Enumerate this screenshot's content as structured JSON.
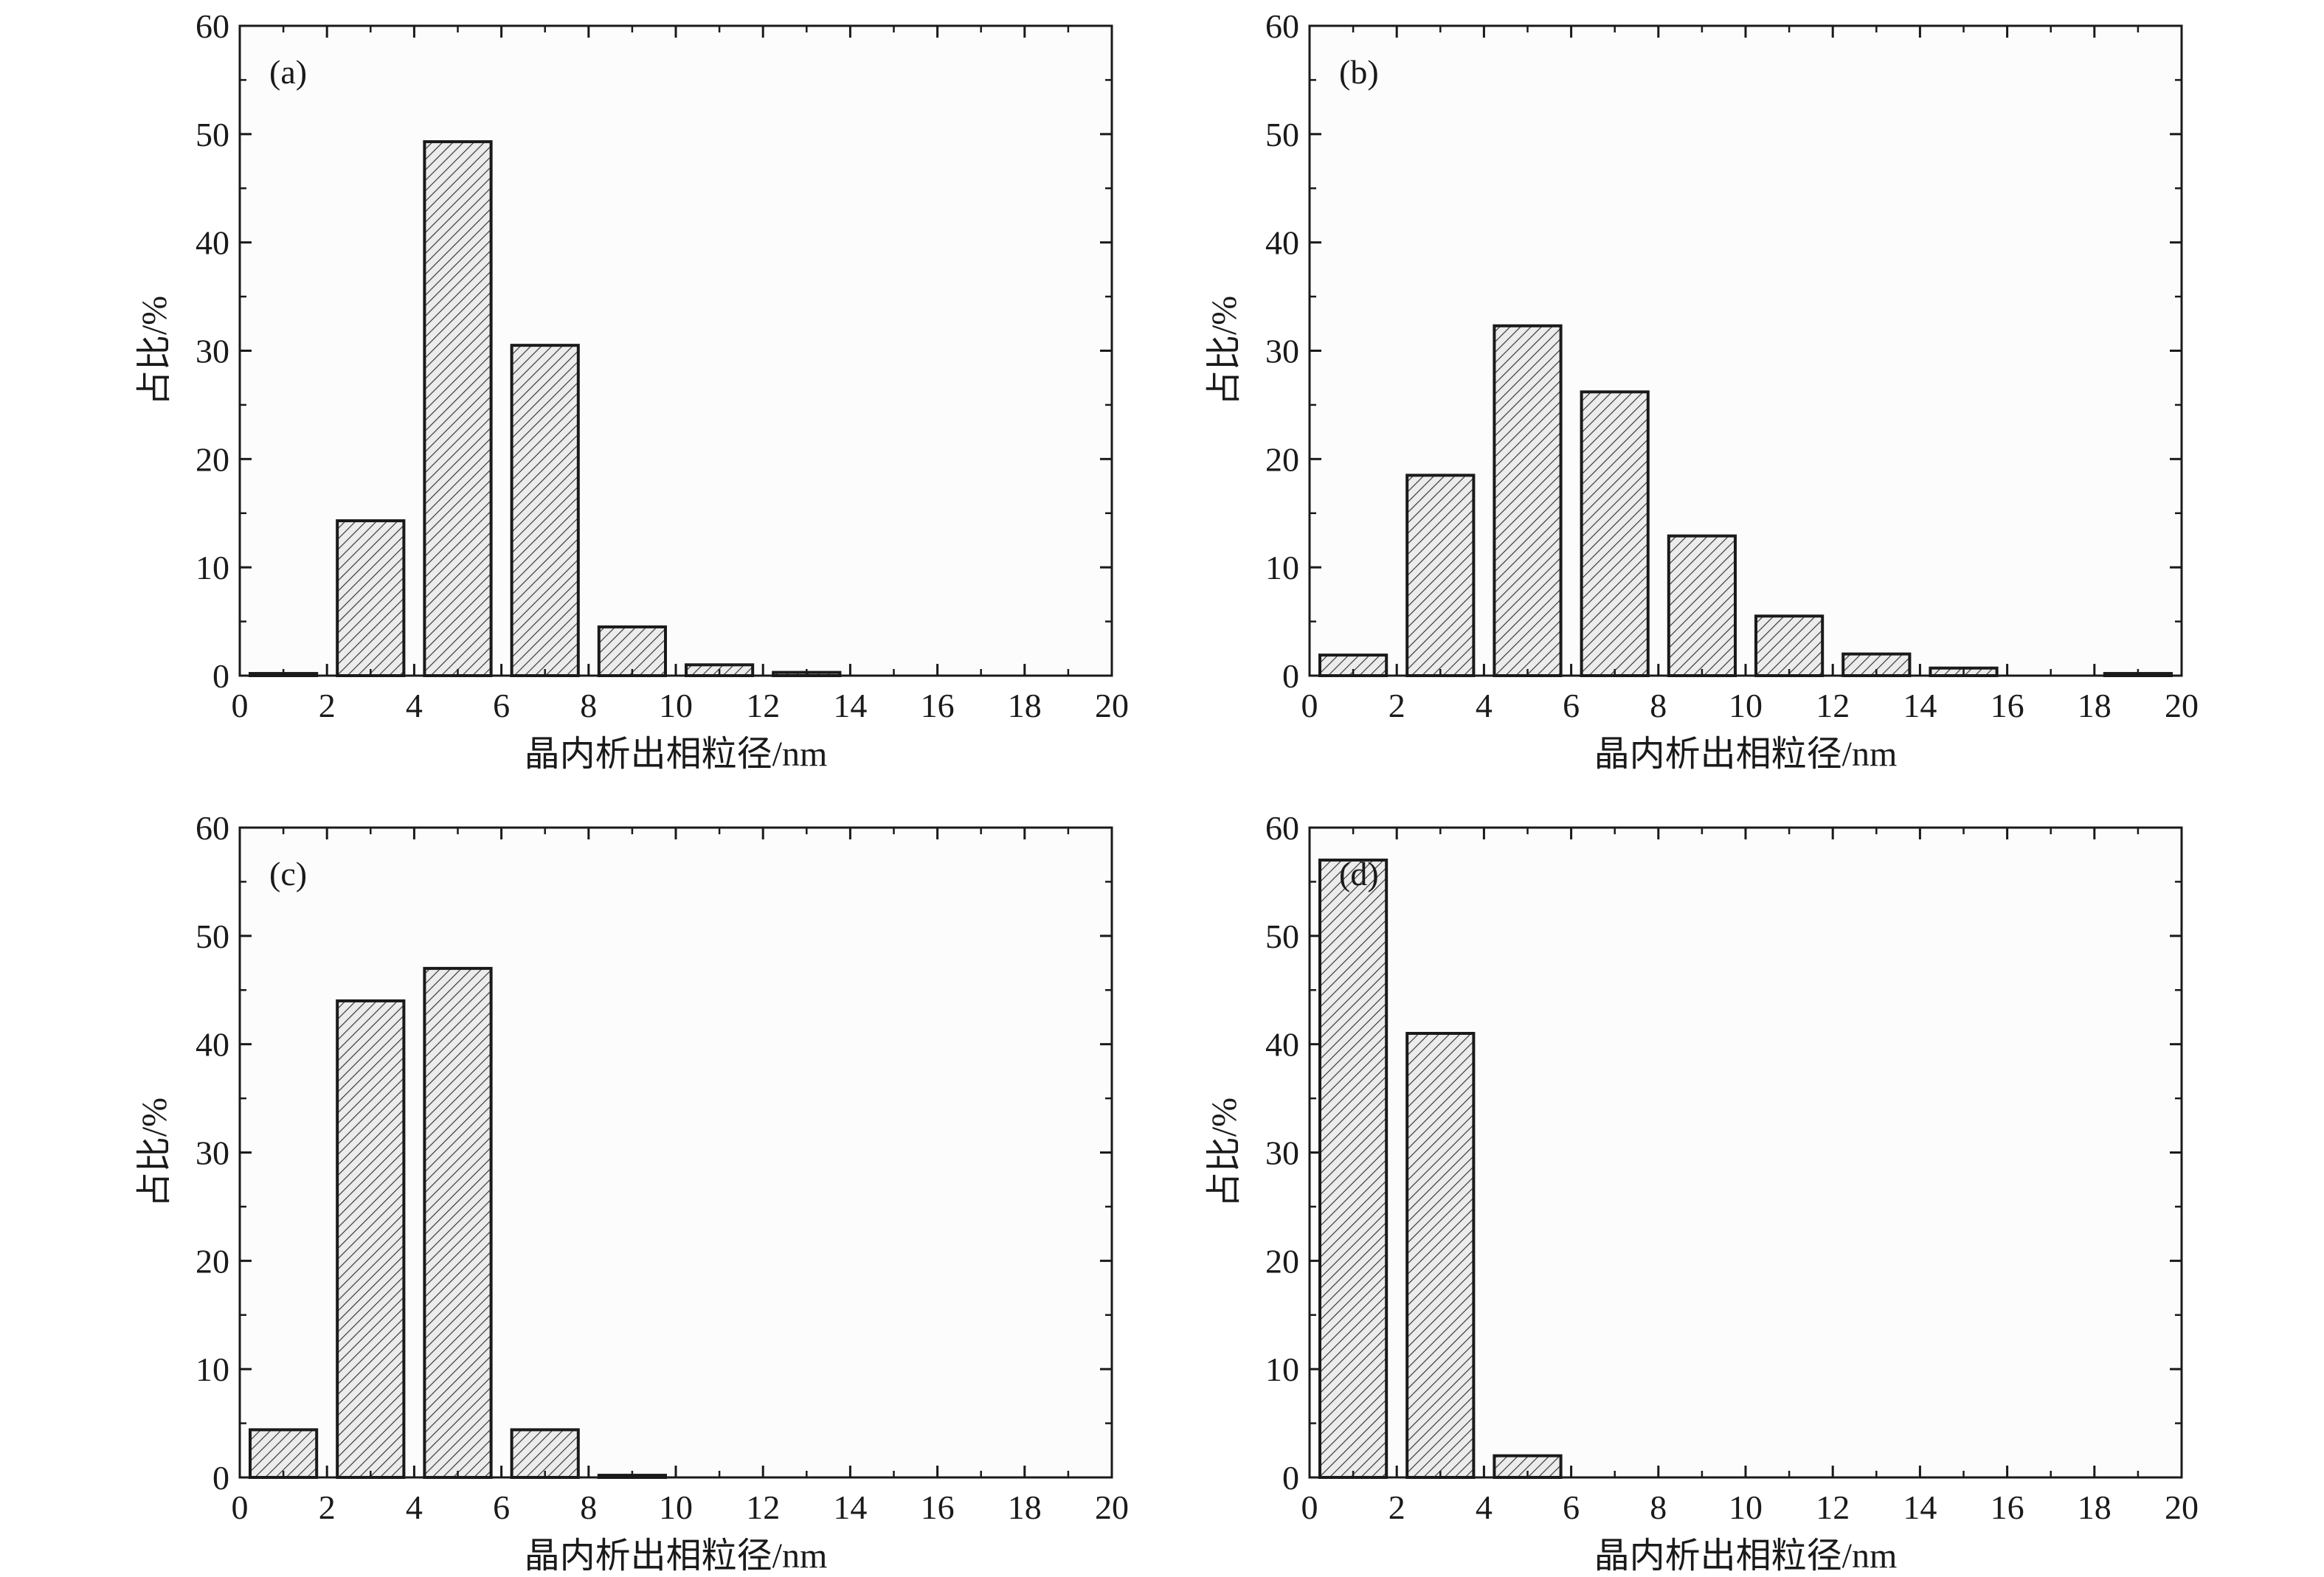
{
  "colors": {
    "axis": "#1a1a1a",
    "bar_fill": "#ececec",
    "hatch": "#3a3a3a",
    "plot_bg": "#fcfcfc"
  },
  "chart_data": [
    {
      "type": "bar",
      "label": "(a)",
      "xlabel": "晶内析出相粒径/nm",
      "ylabel": "占比/%",
      "xlim": [
        0,
        20
      ],
      "ylim": [
        0,
        60
      ],
      "xticks": [
        "0",
        "2",
        "4",
        "6",
        "8",
        "10",
        "12",
        "14",
        "16",
        "18",
        "20"
      ],
      "yticks": [
        "0",
        "10",
        "20",
        "30",
        "40",
        "50",
        "60"
      ],
      "bins": [
        {
          "x0": 0,
          "x1": 2,
          "value": 0.2
        },
        {
          "x0": 2,
          "x1": 4,
          "value": 14.3
        },
        {
          "x0": 4,
          "x1": 6,
          "value": 49.3
        },
        {
          "x0": 6,
          "x1": 8,
          "value": 30.5
        },
        {
          "x0": 8,
          "x1": 10,
          "value": 4.5
        },
        {
          "x0": 10,
          "x1": 12,
          "value": 1.0
        },
        {
          "x0": 12,
          "x1": 14,
          "value": 0.3
        }
      ]
    },
    {
      "type": "bar",
      "label": "(b)",
      "xlabel": "晶内析出相粒径/nm",
      "ylabel": "占比/%",
      "xlim": [
        0,
        20
      ],
      "ylim": [
        0,
        60
      ],
      "xticks": [
        "0",
        "2",
        "4",
        "6",
        "8",
        "10",
        "12",
        "14",
        "16",
        "18",
        "20"
      ],
      "yticks": [
        "0",
        "10",
        "20",
        "30",
        "40",
        "50",
        "60"
      ],
      "bins": [
        {
          "x0": 0,
          "x1": 2,
          "value": 1.9
        },
        {
          "x0": 2,
          "x1": 4,
          "value": 18.5
        },
        {
          "x0": 4,
          "x1": 6,
          "value": 32.3
        },
        {
          "x0": 6,
          "x1": 8,
          "value": 26.2
        },
        {
          "x0": 8,
          "x1": 10,
          "value": 12.9
        },
        {
          "x0": 10,
          "x1": 12,
          "value": 5.5
        },
        {
          "x0": 12,
          "x1": 14,
          "value": 2.0
        },
        {
          "x0": 14,
          "x1": 16,
          "value": 0.7
        },
        {
          "x0": 16,
          "x1": 18,
          "value": 0
        },
        {
          "x0": 18,
          "x1": 20,
          "value": 0.2
        }
      ]
    },
    {
      "type": "bar",
      "label": "(c)",
      "xlabel": "晶内析出相粒径/nm",
      "ylabel": "占比/%",
      "xlim": [
        0,
        20
      ],
      "ylim": [
        0,
        60
      ],
      "xticks": [
        "0",
        "2",
        "4",
        "6",
        "8",
        "10",
        "12",
        "14",
        "16",
        "18",
        "20"
      ],
      "yticks": [
        "0",
        "10",
        "20",
        "30",
        "40",
        "50",
        "60"
      ],
      "bins": [
        {
          "x0": 0,
          "x1": 2,
          "value": 4.4
        },
        {
          "x0": 2,
          "x1": 4,
          "value": 44.0
        },
        {
          "x0": 4,
          "x1": 6,
          "value": 47.0
        },
        {
          "x0": 6,
          "x1": 8,
          "value": 4.4
        },
        {
          "x0": 8,
          "x1": 10,
          "value": 0.2
        }
      ]
    },
    {
      "type": "bar",
      "label": "(d)",
      "xlabel": "晶内析出相粒径/nm",
      "ylabel": "占比/%",
      "xlim": [
        0,
        20
      ],
      "ylim": [
        0,
        60
      ],
      "xticks": [
        "0",
        "2",
        "4",
        "6",
        "8",
        "10",
        "12",
        "14",
        "16",
        "18",
        "20"
      ],
      "yticks": [
        "0",
        "10",
        "20",
        "30",
        "40",
        "50",
        "60"
      ],
      "bins": [
        {
          "x0": 0,
          "x1": 2,
          "value": 57.0
        },
        {
          "x0": 2,
          "x1": 4,
          "value": 41.0
        },
        {
          "x0": 4,
          "x1": 6,
          "value": 2.0
        }
      ]
    }
  ]
}
